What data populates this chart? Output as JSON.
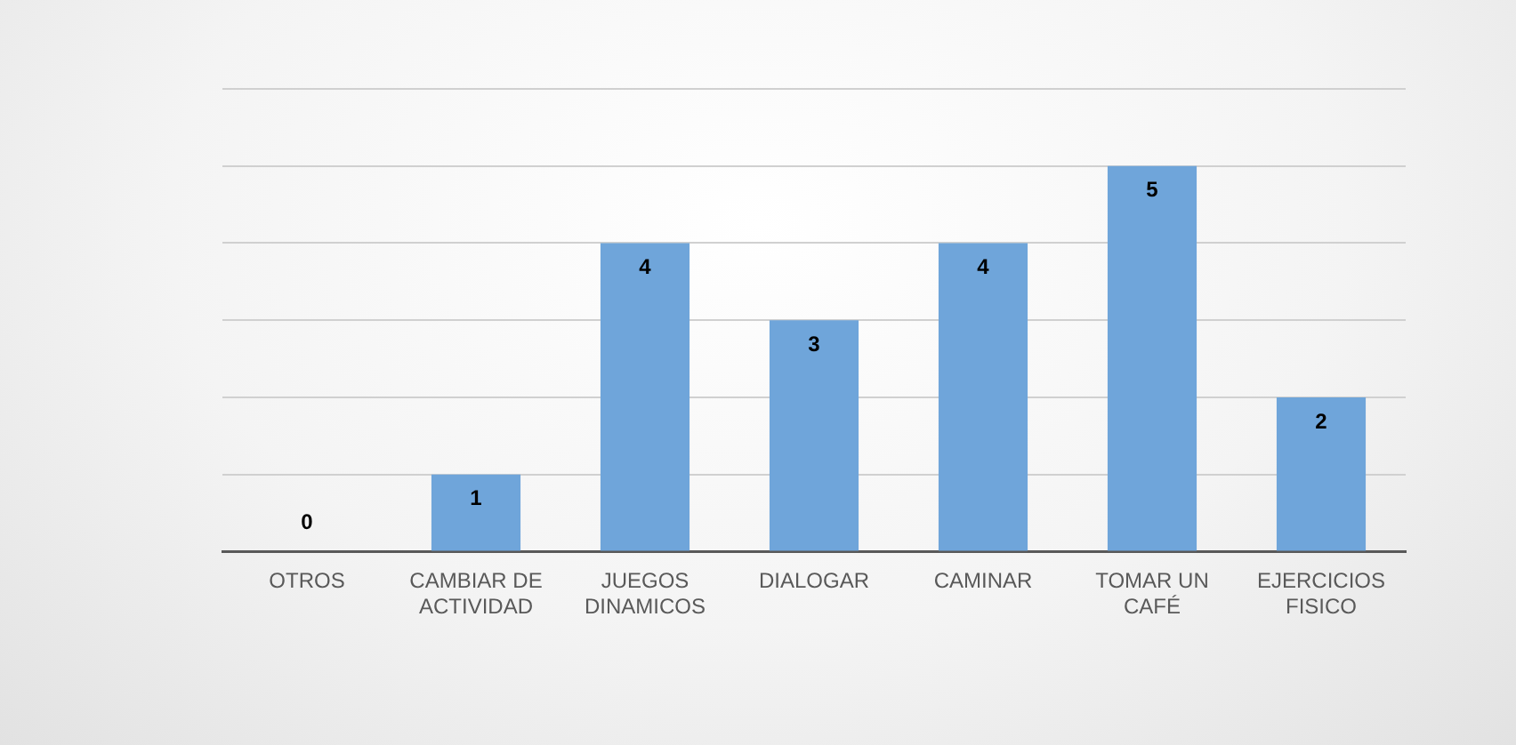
{
  "chart_data": {
    "type": "bar",
    "categories": [
      "OTROS",
      "CAMBIAR DE ACTIVIDAD",
      "JUEGOS DINAMICOS",
      "DIALOGAR",
      "CAMINAR",
      "TOMAR UN CAFÉ",
      "EJERCICIOS FISICO"
    ],
    "values": [
      0,
      1,
      4,
      3,
      4,
      5,
      2
    ],
    "color": "#6fa5da",
    "ylim": [
      0,
      6
    ],
    "yticks": [
      0,
      1,
      2,
      3,
      4,
      5,
      6
    ],
    "grid": "y",
    "tick_labels": "x",
    "data_labels": true,
    "legend": false
  }
}
